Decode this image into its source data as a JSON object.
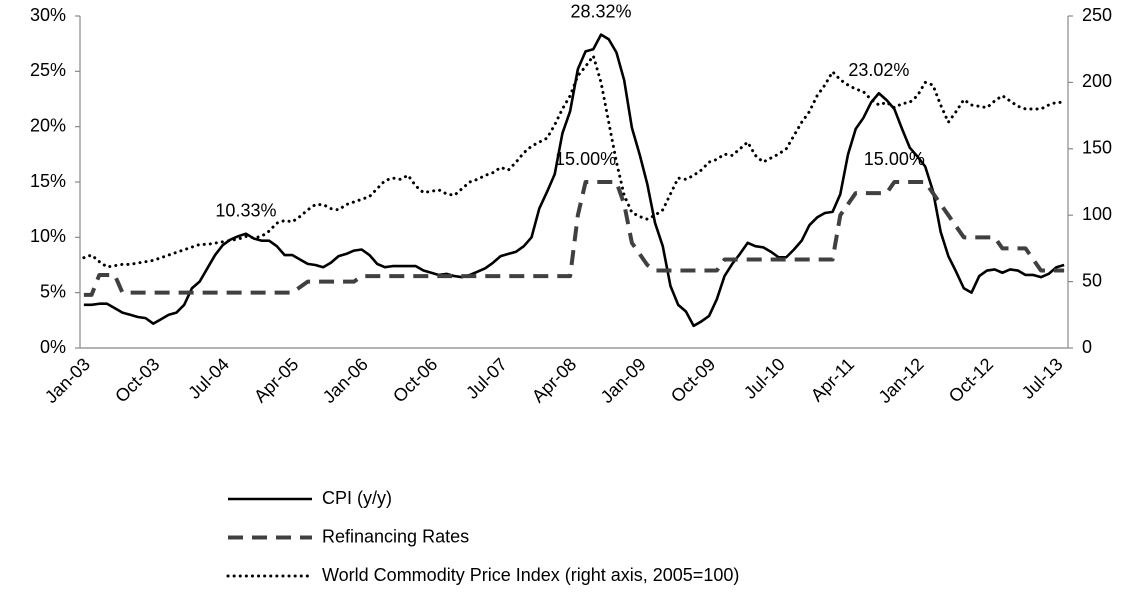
{
  "chart_data": {
    "type": "line",
    "categories": [
      "Jan-03",
      null,
      null,
      null,
      null,
      null,
      null,
      null,
      null,
      "Oct-03",
      null,
      null,
      null,
      null,
      null,
      null,
      null,
      null,
      "Jul-04",
      null,
      null,
      null,
      null,
      null,
      null,
      null,
      null,
      "Apr-05",
      null,
      null,
      null,
      null,
      null,
      null,
      null,
      null,
      "Jan-06",
      null,
      null,
      null,
      null,
      null,
      null,
      null,
      null,
      "Oct-06",
      null,
      null,
      null,
      null,
      null,
      null,
      null,
      null,
      "Jul-07",
      null,
      null,
      null,
      null,
      null,
      null,
      null,
      null,
      "Apr-08",
      null,
      null,
      null,
      null,
      null,
      null,
      null,
      null,
      "Jan-09",
      null,
      null,
      null,
      null,
      null,
      null,
      null,
      null,
      "Oct-09",
      null,
      null,
      null,
      null,
      null,
      null,
      null,
      null,
      "Jul-10",
      null,
      null,
      null,
      null,
      null,
      null,
      null,
      null,
      "Apr-11",
      null,
      null,
      null,
      null,
      null,
      null,
      null,
      null,
      "Jan-12",
      null,
      null,
      null,
      null,
      null,
      null,
      null,
      null,
      "Oct-12",
      null,
      null,
      null,
      null,
      null,
      null,
      null,
      null,
      "Jul-13",
      null
    ],
    "series": [
      {
        "name": "CPI (y/y)",
        "color": "#000000",
        "line_style": "solid",
        "values": [
          3.9,
          3.9,
          4.0,
          4.0,
          3.6,
          3.2,
          3.0,
          2.8,
          2.7,
          2.2,
          2.6,
          3.0,
          3.2,
          3.9,
          5.4,
          6.0,
          7.2,
          8.4,
          9.3,
          9.8,
          10.1,
          10.33,
          9.9,
          9.7,
          9.7,
          9.2,
          8.4,
          8.4,
          8.0,
          7.6,
          7.5,
          7.3,
          7.7,
          8.3,
          8.5,
          8.8,
          8.9,
          8.4,
          7.6,
          7.3,
          7.4,
          7.4,
          7.4,
          7.4,
          7.0,
          6.8,
          6.6,
          6.7,
          6.5,
          6.4,
          6.6,
          6.9,
          7.2,
          7.7,
          8.3,
          8.5,
          8.7,
          9.2,
          10.0,
          12.6,
          14.1,
          15.7,
          19.4,
          21.4,
          25.2,
          26.8,
          27.0,
          28.32,
          27.9,
          26.7,
          24.2,
          19.9,
          17.5,
          14.8,
          11.3,
          9.2,
          5.6,
          3.9,
          3.3,
          2.0,
          2.4,
          2.9,
          4.4,
          6.5,
          7.6,
          8.5,
          9.5,
          9.2,
          9.1,
          8.7,
          8.2,
          8.2,
          8.9,
          9.7,
          11.1,
          11.8,
          12.2,
          12.3,
          13.9,
          17.5,
          19.8,
          20.8,
          22.2,
          23.02,
          22.4,
          21.6,
          19.8,
          18.1,
          17.3,
          16.4,
          14.2,
          10.5,
          8.3,
          6.9,
          5.4,
          5.0,
          6.5,
          7.0,
          7.1,
          6.8,
          7.1,
          7.0,
          6.6,
          6.6,
          6.4,
          6.7,
          7.3,
          7.5
        ],
        "value_labels": [
          null,
          null,
          null,
          null,
          null,
          null,
          null,
          null,
          null,
          null,
          null,
          null,
          null,
          null,
          null,
          null,
          null,
          null,
          null,
          null,
          null,
          "10.33%",
          null,
          null,
          null,
          null,
          null,
          null,
          null,
          null,
          null,
          null,
          null,
          null,
          null,
          null,
          null,
          null,
          null,
          null,
          null,
          null,
          null,
          null,
          null,
          null,
          null,
          null,
          null,
          null,
          null,
          null,
          null,
          null,
          null,
          null,
          null,
          null,
          null,
          null,
          null,
          null,
          null,
          null,
          null,
          null,
          null,
          "28.32%",
          null,
          null,
          null,
          null,
          null,
          null,
          null,
          null,
          null,
          null,
          null,
          null,
          null,
          null,
          null,
          null,
          null,
          null,
          null,
          null,
          null,
          null,
          null,
          null,
          null,
          null,
          null,
          null,
          null,
          null,
          null,
          null,
          null,
          null,
          null,
          "23.02%",
          null,
          null,
          null,
          null,
          null,
          null,
          null,
          null,
          null,
          null,
          null,
          null,
          null,
          null,
          null,
          null,
          null,
          null,
          null,
          null,
          null,
          null,
          null,
          null
        ]
      },
      {
        "name": "Refinancing Rates",
        "color": "#404040",
        "line_style": "dashed",
        "values": [
          4.8,
          4.8,
          6.6,
          6.6,
          6.6,
          5.0,
          5.0,
          5.0,
          5.0,
          5.0,
          5.0,
          5.0,
          5.0,
          5.0,
          5.0,
          5.0,
          5.0,
          5.0,
          5.0,
          5.0,
          5.0,
          5.0,
          5.0,
          5.0,
          5.0,
          5.0,
          5.0,
          5.0,
          5.5,
          6.0,
          6.0,
          6.0,
          6.0,
          6.0,
          6.0,
          6.0,
          6.5,
          6.5,
          6.5,
          6.5,
          6.5,
          6.5,
          6.5,
          6.5,
          6.5,
          6.5,
          6.5,
          6.5,
          6.5,
          6.5,
          6.5,
          6.5,
          6.5,
          6.5,
          6.5,
          6.5,
          6.5,
          6.5,
          6.5,
          6.5,
          6.5,
          6.5,
          6.5,
          6.5,
          12,
          15,
          15,
          15,
          15,
          15,
          13,
          9.5,
          8.5,
          7.5,
          7,
          7,
          7,
          7,
          7,
          7,
          7,
          7,
          7,
          8,
          8,
          8,
          8,
          8,
          8,
          8,
          8,
          8,
          8,
          8,
          8,
          8,
          8,
          8,
          12,
          13,
          14,
          14,
          14,
          14,
          14,
          15,
          15,
          15,
          15,
          15,
          14,
          13,
          12,
          11,
          10,
          10,
          10,
          10,
          10,
          9,
          9,
          9,
          9,
          8,
          7,
          7,
          7,
          7
        ],
        "value_labels": [
          null,
          null,
          null,
          null,
          null,
          null,
          null,
          null,
          null,
          null,
          null,
          null,
          null,
          null,
          null,
          null,
          null,
          null,
          null,
          null,
          null,
          null,
          null,
          null,
          null,
          null,
          null,
          null,
          null,
          null,
          null,
          null,
          null,
          null,
          null,
          null,
          null,
          null,
          null,
          null,
          null,
          null,
          null,
          null,
          null,
          null,
          null,
          null,
          null,
          null,
          null,
          null,
          null,
          null,
          null,
          null,
          null,
          null,
          null,
          null,
          null,
          null,
          null,
          null,
          null,
          "15.00%",
          null,
          null,
          null,
          null,
          null,
          null,
          null,
          null,
          null,
          null,
          null,
          null,
          null,
          null,
          null,
          null,
          null,
          null,
          null,
          null,
          null,
          null,
          null,
          null,
          null,
          null,
          null,
          null,
          null,
          null,
          null,
          null,
          null,
          null,
          null,
          null,
          null,
          null,
          null,
          "15.00%",
          null,
          null,
          null,
          null,
          null,
          null,
          null,
          null,
          null,
          null,
          null,
          null,
          null,
          null,
          null,
          null,
          null,
          null,
          null,
          null,
          null,
          null
        ]
      },
      {
        "name": "World Commodity Price Index (right axis, 2005=100)",
        "color": "#000000",
        "line_style": "dotted",
        "axis": "y2",
        "values": [
          68,
          70,
          65,
          61,
          62,
          63,
          63,
          64,
          65,
          66,
          68,
          70,
          72,
          74,
          76,
          78,
          78,
          79,
          80,
          81,
          82,
          84,
          83,
          84,
          88,
          94,
          96,
          95,
          99,
          104,
          108,
          108,
          105,
          104,
          108,
          110,
          112,
          114,
          120,
          126,
          128,
          127,
          130,
          122,
          117,
          118,
          119,
          116,
          115,
          120,
          125,
          127,
          130,
          132,
          136,
          134,
          140,
          147,
          152,
          155,
          158,
          168,
          180,
          190,
          205,
          212,
          220,
          200,
          170,
          140,
          115,
          102,
          99,
          97,
          100,
          104,
          116,
          128,
          127,
          130,
          134,
          140,
          142,
          146,
          145,
          150,
          155,
          145,
          140,
          143,
          146,
          150,
          160,
          170,
          178,
          190,
          198,
          208,
          202,
          198,
          195,
          193,
          187,
          183,
          185,
          181,
          184,
          185,
          190,
          200,
          198,
          183,
          170,
          178,
          187,
          183,
          182,
          181,
          186,
          190,
          186,
          182,
          180,
          180,
          180,
          183,
          185,
          185
        ]
      }
    ],
    "ylim": [
      0,
      30
    ],
    "yticks": [
      {
        "value": 0,
        "label": "0%"
      },
      {
        "value": 5,
        "label": "5%"
      },
      {
        "value": 10,
        "label": "10%"
      },
      {
        "value": 15,
        "label": "15%"
      },
      {
        "value": 20,
        "label": "20%"
      },
      {
        "value": 25,
        "label": "25%"
      },
      {
        "value": 30,
        "label": "30%"
      }
    ],
    "y2lim": [
      0,
      250
    ],
    "y2ticks": [
      0,
      50,
      100,
      150,
      200,
      250
    ],
    "grid": false
  }
}
